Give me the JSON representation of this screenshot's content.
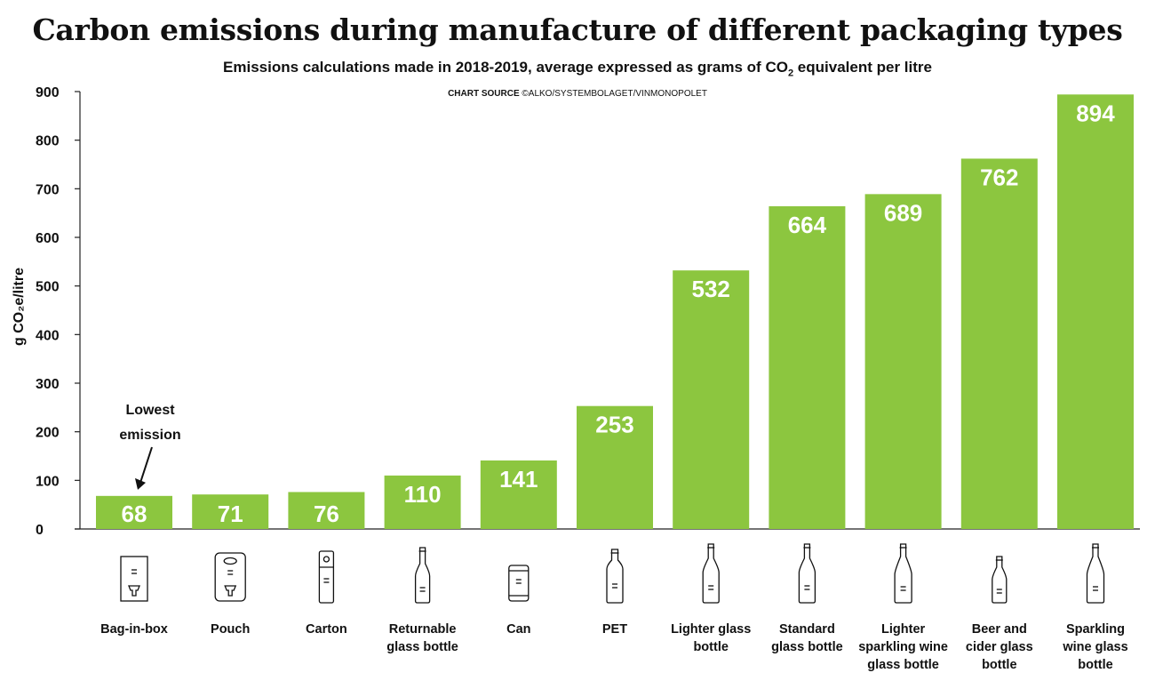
{
  "chart_data": {
    "type": "bar",
    "title": "Carbon emissions during manufacture of different packaging types",
    "subtitle_main": "Emissions calculations made in 2018-2019,  average expressed as grams of CO",
    "subtitle_sub": "2",
    "subtitle_end": " equivalent per litre",
    "source_label": "CHART SOURCE",
    "source_text": "©ALKO/SYSTEMBOLAGET/VINMONOPOLET",
    "ylabel": "g CO₂e/litre",
    "xlabel": "",
    "ylim": [
      0,
      900
    ],
    "yticks": [
      0,
      100,
      200,
      300,
      400,
      500,
      600,
      700,
      800,
      900
    ],
    "categories": [
      "Bag-in-box",
      "Pouch",
      "Carton",
      "Returnable glass bottle",
      "Can",
      "PET",
      "Lighter glass bottle",
      "Standard glass bottle",
      "Lighter sparkling wine glass bottle",
      "Beer and cider glass bottle",
      "Sparkling wine glass bottle"
    ],
    "category_lines": [
      [
        "Bag-in-box"
      ],
      [
        "Pouch"
      ],
      [
        "Carton"
      ],
      [
        "Returnable",
        "glass bottle"
      ],
      [
        "Can"
      ],
      [
        "PET"
      ],
      [
        "Lighter glass",
        "bottle"
      ],
      [
        "Standard",
        "glass bottle"
      ],
      [
        "Lighter",
        "sparkling wine",
        "glass bottle"
      ],
      [
        "Beer and",
        "cider glass",
        "bottle"
      ],
      [
        "Sparkling",
        "wine glass",
        "bottle"
      ]
    ],
    "icons": [
      "bag-in-box-icon",
      "pouch-icon",
      "carton-icon",
      "returnable-bottle-icon",
      "can-icon",
      "pet-bottle-icon",
      "lighter-glass-bottle-icon",
      "standard-glass-bottle-icon",
      "lighter-sparkling-bottle-icon",
      "beer-cider-bottle-icon",
      "sparkling-wine-bottle-icon"
    ],
    "values": [
      68,
      71,
      76,
      110,
      141,
      253,
      532,
      664,
      689,
      762,
      894
    ],
    "bar_color": "#8cc63f",
    "value_label_color": "#ffffff",
    "annotation": {
      "lines": [
        "Lowest",
        "emission"
      ],
      "target_index": 0
    }
  }
}
